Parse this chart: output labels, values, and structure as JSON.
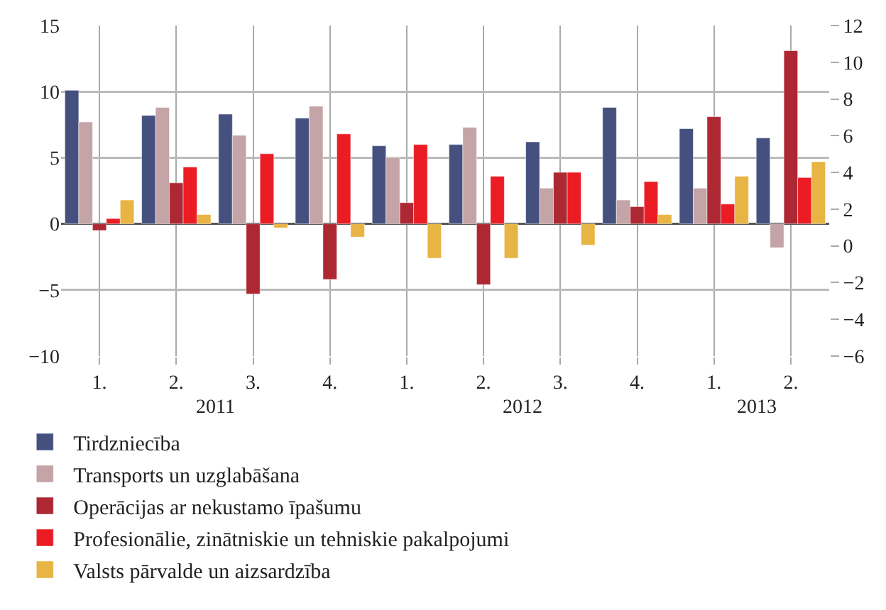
{
  "chart_data": {
    "type": "bar",
    "categories": [
      "1.",
      "2.",
      "3.",
      "4.",
      "1.",
      "2.",
      "3.",
      "4.",
      "1.",
      "2."
    ],
    "annotations": [
      "2011",
      "2012",
      "2013"
    ],
    "series": [
      {
        "name": "Tirdzniecība",
        "color": "#45507f",
        "values": [
          10.1,
          8.2,
          8.3,
          8.0,
          5.9,
          6.0,
          6.2,
          8.8,
          7.2,
          6.5
        ]
      },
      {
        "name": "Transports un uzglabāšana",
        "color": "#c4a4a6",
        "values": [
          7.7,
          8.8,
          6.7,
          8.9,
          5.0,
          7.3,
          2.7,
          1.8,
          2.7,
          -1.8
        ]
      },
      {
        "name": "Operācijas ar nekustamo īpašumu",
        "color": "#ad2832",
        "values": [
          -0.5,
          3.1,
          -5.3,
          -4.2,
          1.6,
          -4.6,
          3.9,
          1.3,
          8.1,
          13.1
        ]
      },
      {
        "name": "Profesionālie, zinātniskie un tehniskie pakalpojumi",
        "color": "#ec1c24",
        "values": [
          0.4,
          4.3,
          5.3,
          6.8,
          6.0,
          3.6,
          3.9,
          3.2,
          1.5,
          3.5
        ]
      },
      {
        "name": "Valsts pārvalde un aizsardzība",
        "color": "#e8b443",
        "values": [
          1.8,
          0.7,
          -0.3,
          -1.0,
          -2.6,
          -2.6,
          -1.6,
          0.7,
          3.6,
          4.7
        ]
      }
    ],
    "ylim": [
      -10,
      15
    ],
    "yticks": [
      {
        "value": -10,
        "label": "−10"
      },
      {
        "value": -5,
        "label": "−5"
      },
      0,
      5,
      10,
      15
    ],
    "y2lim": [
      -6,
      12
    ],
    "y2ticks": [
      {
        "value": -6,
        "label": "−6"
      },
      {
        "value": -4,
        "label": "−4"
      },
      {
        "value": -2,
        "label": "−2"
      },
      0,
      2,
      4,
      6,
      8,
      10,
      12
    ],
    "grid": true,
    "legend": "bottom left"
  }
}
